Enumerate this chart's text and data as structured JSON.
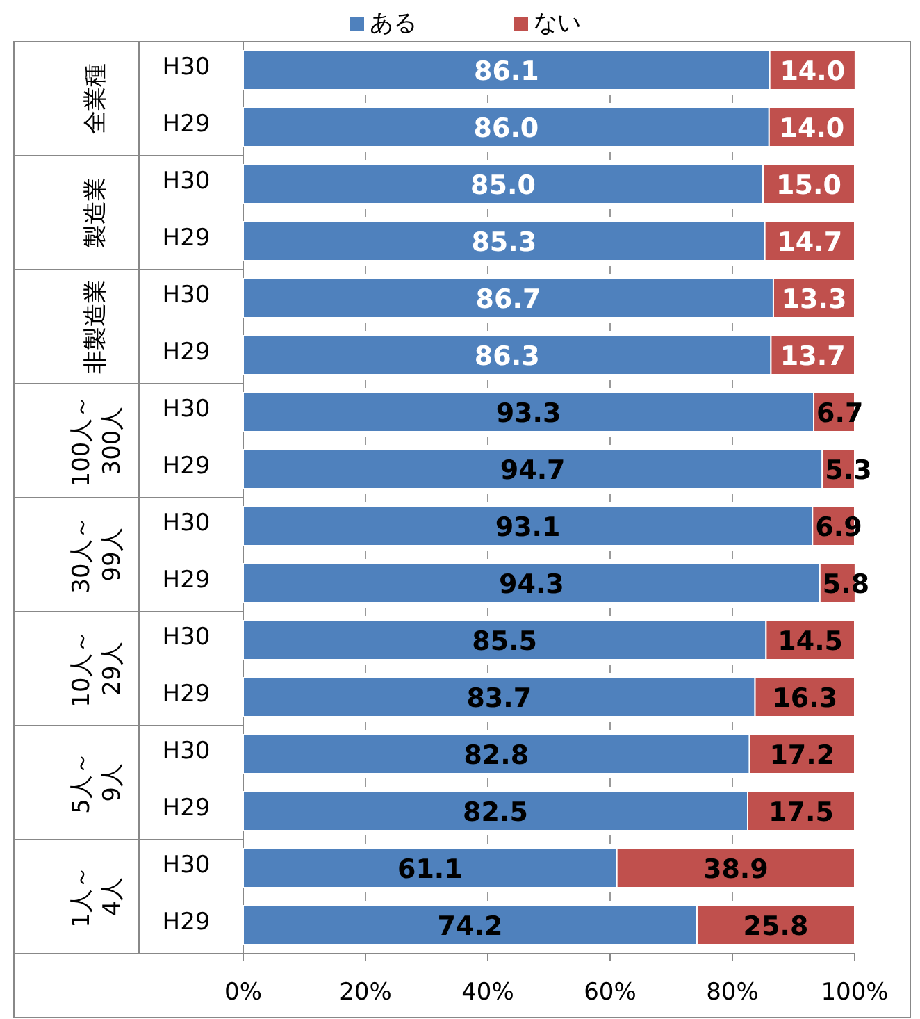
{
  "chart_data": {
    "type": "bar",
    "orientation": "horizontal",
    "stacked": true,
    "legend": "top",
    "categories": [
      "H30",
      "H29",
      "H30",
      "H29",
      "H30",
      "H29",
      "H30",
      "H29",
      "H30",
      "H29",
      "H30",
      "H29",
      "H30",
      "H29",
      "H30",
      "H29"
    ],
    "series": [
      {
        "name": "ある",
        "color": "#4f81bd",
        "values": [
          86.1,
          86.0,
          85.0,
          85.3,
          86.7,
          86.3,
          93.3,
          94.7,
          93.1,
          94.3,
          85.5,
          83.7,
          82.8,
          82.5,
          61.1,
          74.2
        ],
        "value_labels": [
          "86.1",
          "86.0",
          "85.0",
          "85.3",
          "86.7",
          "86.3",
          "93.3",
          "94.7",
          "93.1",
          "94.3",
          "85.5",
          "83.7",
          "82.8",
          "82.5",
          "61.1",
          "74.2"
        ]
      },
      {
        "name": "ない",
        "color": "#c0504d",
        "values": [
          14.0,
          14.0,
          15.0,
          14.7,
          13.3,
          13.7,
          6.7,
          5.3,
          6.9,
          5.8,
          14.5,
          16.3,
          17.2,
          17.5,
          38.9,
          25.8
        ],
        "value_labels": [
          "14.0",
          "14.0",
          "15.0",
          "14.7",
          "13.3",
          "13.7",
          "6.7",
          "5.3",
          "6.9",
          "5.8",
          "14.5",
          "16.3",
          "17.2",
          "17.5",
          "38.9",
          "25.8"
        ]
      }
    ],
    "xlim": [
      0,
      100
    ],
    "xticks": [
      {
        "value": 0,
        "label": "0%"
      },
      {
        "value": 20,
        "label": "20%"
      },
      {
        "value": 40,
        "label": "40%"
      },
      {
        "value": 60,
        "label": "60%"
      },
      {
        "value": 80,
        "label": "80%"
      },
      {
        "value": 100,
        "label": "100%"
      }
    ],
    "annotations": [
      "全業種",
      "製造業",
      "非製造業",
      "100人～300人",
      "30人～99人",
      "10人～29人",
      "5人～9人",
      "1人～4人"
    ]
  }
}
